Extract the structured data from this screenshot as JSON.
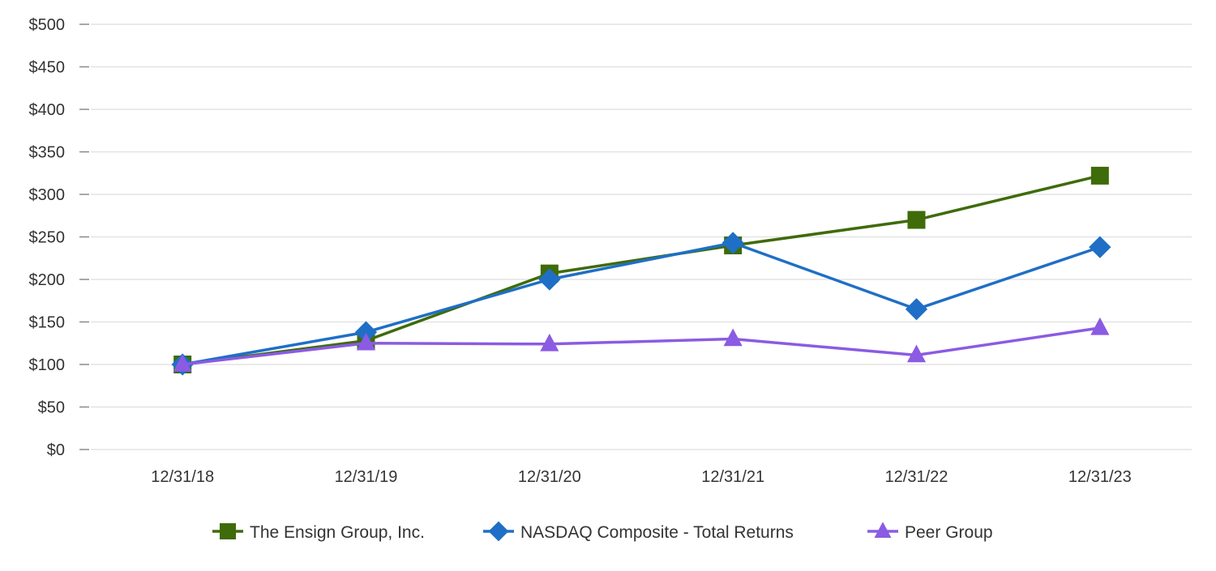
{
  "chart_data": {
    "type": "line",
    "categories": [
      "12/31/18",
      "12/31/19",
      "12/31/20",
      "12/31/21",
      "12/31/22",
      "12/31/23"
    ],
    "ylim": [
      0,
      500
    ],
    "yticks": [
      0,
      50,
      100,
      150,
      200,
      250,
      300,
      350,
      400,
      450,
      500
    ],
    "ytick_labels": [
      "$0",
      "$50",
      "$100",
      "$150",
      "$200",
      "$250",
      "$300",
      "$350",
      "$400",
      "$450",
      "$500"
    ],
    "grid": true,
    "legend_position": "bottom-center",
    "series": [
      {
        "name": "The Ensign Group, Inc.",
        "values": [
          100,
          128,
          207,
          240,
          270,
          322
        ],
        "color": "#3f6b0a",
        "marker": "square"
      },
      {
        "name": "NASDAQ Composite - Total Returns",
        "values": [
          100,
          138,
          200,
          243,
          165,
          238
        ],
        "color": "#1f6fc6",
        "marker": "diamond"
      },
      {
        "name": "Peer Group",
        "values": [
          100,
          125,
          124,
          130,
          111,
          143
        ],
        "color": "#8b5be3",
        "marker": "triangle"
      }
    ]
  }
}
